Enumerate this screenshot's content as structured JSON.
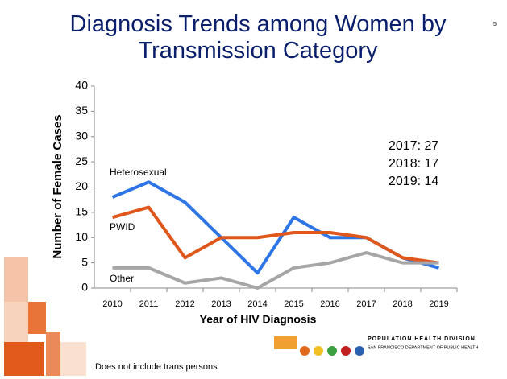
{
  "page_number": "5",
  "chart_data": {
    "type": "line",
    "title": "Diagnosis Trends among Women by Transmission Category",
    "ylabel": "Number of Female Cases",
    "xlabel": "Year of HIV Diagnosis",
    "categories": [
      "2010",
      "2011",
      "2012",
      "2013",
      "2014",
      "2015",
      "2016",
      "2017",
      "2018",
      "2019"
    ],
    "series": [
      {
        "name": "Heterosexual",
        "color": "#2e75e6",
        "values": [
          18,
          21,
          17,
          10,
          3,
          14,
          10,
          10,
          6,
          4
        ]
      },
      {
        "name": "PWID",
        "color": "#e0571b",
        "values": [
          14,
          16,
          6,
          10,
          10,
          11,
          11,
          10,
          6,
          5
        ]
      },
      {
        "name": "Other",
        "color": "#a6a6a6",
        "values": [
          4,
          4,
          1,
          2,
          0,
          4,
          5,
          7,
          5,
          5
        ]
      }
    ],
    "ylim": [
      0,
      40
    ],
    "yticks": [
      0,
      5,
      10,
      15,
      20,
      25,
      30,
      35,
      40
    ],
    "annotations": [
      "2017: 27",
      "2018: 17",
      "2019: 14"
    ]
  },
  "footnote": "Does not include trans persons",
  "logo": {
    "title": "POPULATION HEALTH DIVISION",
    "subtitle": "SAN FRANCISCO DEPARTMENT OF PUBLIC HEALTH"
  }
}
